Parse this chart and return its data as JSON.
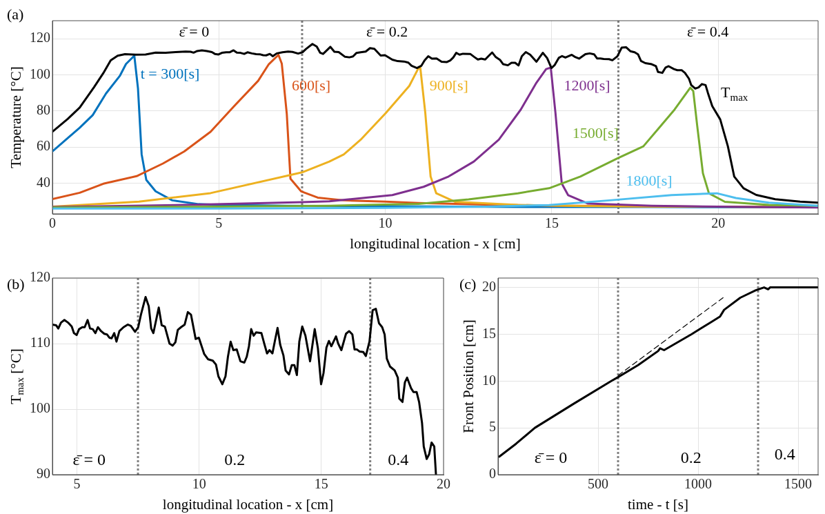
{
  "chart_data": [
    {
      "type": "line",
      "title": "(a)",
      "xlabel": "longitudinal location - x [cm]",
      "ylabel": "Temperature [°C]",
      "xlim": [
        0,
        23
      ],
      "ylim": [
        23,
        130
      ],
      "xticks": [
        0,
        5,
        10,
        15,
        20
      ],
      "yticks": [
        40,
        60,
        80,
        100,
        120
      ],
      "grid": true,
      "marker": "none",
      "ref_lines": [
        {
          "axis": "x",
          "value": 7.5,
          "color": "#808080",
          "line_style": "dotted"
        },
        {
          "axis": "x",
          "value": 17,
          "color": "#808080",
          "line_style": "dotted"
        }
      ],
      "annotations": [
        "ε̄ = 0",
        "ε̄ = 0.2",
        "ε̄ = 0.4"
      ],
      "series": [
        {
          "name": "t = 300[s]",
          "color": "#0072bd",
          "x": [
            0,
            0.46,
            0.82,
            1.21,
            1.61,
            2.03,
            2.21,
            2.46,
            2.57,
            2.68,
            2.82,
            3.1,
            3.6,
            4.39,
            5,
            7,
            9,
            12,
            15,
            18,
            21,
            23
          ],
          "values": [
            57.6,
            65,
            70.7,
            77.7,
            89.7,
            99.6,
            106,
            110.6,
            92.5,
            56,
            41.8,
            35.5,
            30.5,
            28.4,
            28,
            27.5,
            27.3,
            27,
            26.8,
            26.8,
            26.7,
            26.7
          ]
        },
        {
          "name": "600[s]",
          "color": "#d95319",
          "x": [
            0,
            0.82,
            1.53,
            2.53,
            3.32,
            3.96,
            4.75,
            5.46,
            6.18,
            6.5,
            6.79,
            6.89,
            7.04,
            7.15,
            7.47,
            7.97,
            8.76,
            10,
            11,
            13,
            15,
            17,
            20,
            23
          ],
          "values": [
            31.2,
            34.7,
            39.7,
            43.9,
            50.9,
            57.6,
            68.5,
            82.7,
            96.7,
            105.9,
            111.1,
            106.2,
            78.4,
            42.5,
            35.5,
            32,
            30.5,
            29.8,
            29,
            28.2,
            27.6,
            27.3,
            27,
            26.8
          ]
        },
        {
          "name": "900[s]",
          "color": "#edb120",
          "x": [
            0,
            2.6,
            4.75,
            7.5,
            8.32,
            8.75,
            9.26,
            10.02,
            10.72,
            10.98,
            11.05,
            11.2,
            11.36,
            11.53,
            12.09,
            13.98,
            16,
            19,
            23
          ],
          "values": [
            27,
            29.8,
            34.5,
            46,
            52,
            55.9,
            64.1,
            79,
            93.9,
            103.2,
            104,
            79,
            43.7,
            34.4,
            29.7,
            28,
            27.3,
            27,
            26.8
          ]
        },
        {
          "name": "1200[s]",
          "color": "#7e2f8e",
          "x": [
            0,
            4,
            7.5,
            8.32,
            10.21,
            11.15,
            11.9,
            12.66,
            13.41,
            14.07,
            14.54,
            14.83,
            14.97,
            15.11,
            15.3,
            15.49,
            16.09,
            18,
            20,
            23
          ],
          "values": [
            26.8,
            28,
            29.5,
            30,
            33.4,
            38,
            43.7,
            52,
            64.1,
            80.8,
            95.7,
            103.2,
            104,
            79,
            39.8,
            33.4,
            28.7,
            27.5,
            27,
            26.5
          ]
        },
        {
          "name": "1500[s]",
          "color": "#77ac30",
          "x": [
            0,
            5,
            8.32,
            11,
            12.5,
            13.98,
            14.92,
            15.86,
            16.99,
            17.75,
            18.22,
            18.69,
            19.16,
            19.25,
            19.37,
            19.54,
            19.72,
            20.2,
            21.52,
            23
          ],
          "values": [
            26.5,
            27,
            27.5,
            28.5,
            31,
            34.4,
            37.2,
            43.7,
            53.9,
            60.4,
            70.6,
            80.8,
            92.9,
            91,
            71.6,
            45.5,
            34.4,
            29.7,
            28,
            27.5
          ]
        },
        {
          "name": "1800[s]",
          "color": "#4dbeee",
          "x": [
            0,
            5,
            10,
            13,
            14.92,
            16.74,
            18.6,
            19.96,
            20.53,
            21.52,
            23
          ],
          "values": [
            26,
            26,
            26.3,
            27,
            27.9,
            30.5,
            33.4,
            34.4,
            31.8,
            29.2,
            27.5
          ]
        },
        {
          "name": "T$_{max}$",
          "color": "#000000",
          "x": [
            0,
            0.46,
            0.82,
            1.25,
            1.53,
            1.75,
            1.96,
            2.18,
            2.5,
            2.8,
            3.1,
            3.4,
            3.7,
            4,
            4.15,
            4.24,
            4.35,
            4.49,
            4.64,
            4.79,
            4.88,
            4.99,
            5.09,
            5.22,
            5.32,
            5.44,
            5.54,
            5.65,
            5.76,
            5.86,
            5.99,
            6.12,
            6.23,
            6.33,
            6.42,
            6.53,
            6.62,
            6.74,
            6.91,
            7.08,
            7.21,
            7.38,
            7.51,
            7.62,
            7.81,
            7.94,
            8.04,
            8.13,
            8.26,
            8.35,
            8.47,
            8.6,
            8.79,
            8.92,
            9.03,
            9.13,
            9.26,
            9.41,
            9.54,
            9.67,
            9.86,
            9.99,
            10.21,
            10.37,
            10.56,
            10.69,
            10.79,
            10.95,
            11.08,
            11.18,
            11.29,
            11.4,
            11.54,
            11.69,
            11.85,
            11.95,
            12.04,
            12.13,
            12.23,
            12.33,
            12.55,
            12.68,
            12.78,
            12.88,
            13,
            13.1,
            13.21,
            13.32,
            13.45,
            13.54,
            13.68,
            13.79,
            13.9,
            14,
            14.1,
            14.22,
            14.35,
            14.54,
            14.73,
            14.86,
            14.99,
            15.09,
            15.21,
            15.31,
            15.41,
            15.6,
            15.69,
            15.82,
            16.01,
            16.14,
            16.27,
            16.36,
            16.46,
            16.56,
            16.72,
            16.82,
            16.97,
            17.1,
            17.23,
            17.36,
            17.49,
            17.59,
            17.68,
            17.81,
            18,
            18.13,
            18.19,
            18.32,
            18.42,
            18.51,
            18.67,
            18.77,
            18.9,
            19,
            19.12,
            19.19,
            19.31,
            19.41,
            19.51,
            19.62,
            19.69,
            19.82,
            20.06,
            20.29,
            20.48,
            20.76,
            21.14,
            21.71,
            22.46,
            23
          ],
          "values": [
            68.5,
            75.6,
            81.9,
            93.2,
            101,
            108,
            110.6,
            111.5,
            111.2,
            111.3,
            112.3,
            112.2,
            112.6,
            112.9,
            112.8,
            112.3,
            113.2,
            113.6,
            113.2,
            112.6,
            111.6,
            111.3,
            112.2,
            112.5,
            112.5,
            113.6,
            112.3,
            112.2,
            111.6,
            112.5,
            111.9,
            111.5,
            111.4,
            110.9,
            110.8,
            111.6,
            110.3,
            111.9,
            112.5,
            112.9,
            112.7,
            111.8,
            112.5,
            114.4,
            117.1,
            115.7,
            112.3,
            111.6,
            113.9,
            115.5,
            112.8,
            112.6,
            110,
            109.7,
            110.2,
            112.1,
            112.5,
            112.9,
            114.8,
            114.4,
            110.7,
            110.9,
            108.4,
            107.6,
            107.4,
            106.8,
            105,
            103.8,
            105,
            108,
            110.3,
            109,
            109.1,
            107.3,
            107.1,
            108,
            109.6,
            112.2,
            111.2,
            111.7,
            111.6,
            109.8,
            108.5,
            109,
            108.5,
            110.4,
            112.4,
            109.8,
            108.2,
            105.9,
            105.3,
            106.7,
            106.7,
            105.2,
            110.3,
            112.6,
            111.2,
            107.3,
            112.2,
            109.3,
            103.8,
            105.5,
            109.4,
            110.4,
            109.6,
            111.1,
            110,
            109,
            111.5,
            111.9,
            111.4,
            109.1,
            109.1,
            108.8,
            108.7,
            108.1,
            110.3,
            115.1,
            115.3,
            113.1,
            112.5,
            111.4,
            107.7,
            106.5,
            105.9,
            104.8,
            101.6,
            101.1,
            104.1,
            104.8,
            103.2,
            102.6,
            102.6,
            101.1,
            97.9,
            94.3,
            92.4,
            93.1,
            94.9,
            94.3,
            90,
            82.7,
            75.3,
            60.4,
            43.7,
            37.2,
            33.5,
            31.1,
            29.8,
            29.2
          ]
        }
      ]
    },
    {
      "type": "line",
      "title": "(b)",
      "xlabel": "longitudinal location - x [cm]",
      "ylabel": "T$_{max}$ [°C]",
      "xlim": [
        4,
        20
      ],
      "ylim": [
        90,
        120
      ],
      "xticks": [
        5,
        10,
        15,
        20
      ],
      "yticks": [
        90,
        100,
        110,
        120
      ],
      "grid": true,
      "marker": "none",
      "ref_lines": [
        {
          "axis": "x",
          "value": 7.5,
          "color": "#808080",
          "line_style": "dotted"
        },
        {
          "axis": "x",
          "value": 17,
          "color": "#808080",
          "line_style": "dotted"
        }
      ],
      "annotations": [
        "ε̄ = 0",
        "0.2",
        "0.4"
      ],
      "series": [
        {
          "color": "#000000",
          "x": [
            4,
            4.15,
            4.24,
            4.35,
            4.49,
            4.64,
            4.79,
            4.88,
            4.99,
            5.09,
            5.22,
            5.32,
            5.44,
            5.54,
            5.65,
            5.76,
            5.86,
            5.99,
            6.12,
            6.23,
            6.33,
            6.42,
            6.53,
            6.62,
            6.74,
            6.91,
            7.08,
            7.21,
            7.38,
            7.51,
            7.62,
            7.81,
            7.94,
            8.04,
            8.13,
            8.26,
            8.35,
            8.47,
            8.6,
            8.79,
            8.92,
            9.03,
            9.13,
            9.26,
            9.41,
            9.54,
            9.67,
            9.86,
            9.99,
            10.21,
            10.37,
            10.56,
            10.69,
            10.79,
            10.95,
            11.08,
            11.18,
            11.29,
            11.4,
            11.54,
            11.69,
            11.85,
            11.95,
            12.04,
            12.13,
            12.23,
            12.33,
            12.55,
            12.68,
            12.78,
            12.88,
            13,
            13.1,
            13.21,
            13.32,
            13.45,
            13.54,
            13.68,
            13.79,
            13.9,
            14,
            14.1,
            14.22,
            14.35,
            14.54,
            14.73,
            14.86,
            14.99,
            15.09,
            15.21,
            15.31,
            15.41,
            15.6,
            15.69,
            15.82,
            16.01,
            16.14,
            16.27,
            16.36,
            16.46,
            16.56,
            16.72,
            16.82,
            16.97,
            17.1,
            17.23,
            17.36,
            17.49,
            17.59,
            17.68,
            17.81,
            18,
            18.13,
            18.19,
            18.32,
            18.42,
            18.51,
            18.67,
            18.77,
            18.9,
            19,
            19.12,
            19.19,
            19.31,
            19.41,
            19.51,
            19.62,
            19.69
          ],
          "values": [
            112.9,
            112.8,
            112.3,
            113.2,
            113.6,
            113.2,
            112.6,
            111.6,
            111.3,
            112.2,
            112.5,
            112.5,
            113.6,
            112.3,
            112.2,
            111.6,
            112.5,
            111.9,
            111.5,
            111.4,
            110.9,
            110.8,
            111.6,
            110.3,
            111.9,
            112.5,
            112.9,
            112.7,
            111.8,
            112.5,
            114.4,
            117.1,
            115.7,
            112.3,
            111.6,
            113.9,
            115.5,
            112.8,
            112.6,
            110,
            109.7,
            110.2,
            112.1,
            112.5,
            112.9,
            114.8,
            114.4,
            110.7,
            110.9,
            108.4,
            107.6,
            107.4,
            106.8,
            105,
            103.8,
            105,
            108,
            110.3,
            109,
            109.1,
            107.3,
            107.1,
            108,
            109.6,
            112.2,
            111.2,
            111.7,
            111.6,
            109.8,
            108.5,
            109,
            108.5,
            110.4,
            112.4,
            109.8,
            108.2,
            105.9,
            105.3,
            106.7,
            106.7,
            105.2,
            110.3,
            112.6,
            111.2,
            107.3,
            112.2,
            109.3,
            103.8,
            105.5,
            109.4,
            110.4,
            109.6,
            111.1,
            110,
            109,
            111.5,
            111.9,
            111.4,
            109.1,
            109.1,
            108.8,
            108.7,
            108.1,
            110.3,
            115.1,
            115.3,
            113.1,
            112.5,
            111.4,
            107.7,
            106.5,
            105.9,
            104.8,
            101.6,
            101.1,
            104.1,
            104.8,
            103.2,
            102.6,
            102.6,
            101.1,
            97.9,
            94.3,
            92.4,
            93.1,
            94.9,
            94.3,
            90
          ]
        }
      ]
    },
    {
      "type": "line",
      "title": "(c)",
      "xlabel": "time - t [s]",
      "ylabel": "Front Position [cm]",
      "xlim": [
        0,
        1600
      ],
      "ylim": [
        0,
        21
      ],
      "xticks": [
        500,
        1000,
        1500
      ],
      "yticks": [
        0,
        5,
        10,
        15,
        20
      ],
      "grid": true,
      "marker": "none",
      "ref_lines": [
        {
          "axis": "x",
          "value": 600,
          "color": "#808080",
          "line_style": "dotted"
        },
        {
          "axis": "x",
          "value": 1300,
          "color": "#808080",
          "line_style": "dotted"
        }
      ],
      "annotations": [
        "ε̄ = 0",
        "0.2",
        "0.4"
      ],
      "series": [
        {
          "color": "#000000",
          "x": [
            6.6,
            90,
            184,
            380,
            566,
            600,
            700,
            800,
            810,
            830,
            967,
            1066,
            1110,
            1130,
            1211,
            1289,
            1330,
            1350,
            1360,
            1600
          ],
          "values": [
            1.93,
            3.3,
            5,
            7.6,
            10,
            10.42,
            11.7,
            13.2,
            13.5,
            13.3,
            15,
            16.3,
            16.9,
            17.6,
            18.9,
            19.7,
            20,
            19.8,
            20,
            20
          ]
        },
        {
          "type": "line",
          "color": "#000000",
          "line_style": "dashed",
          "x": [
            600,
            1125
          ],
          "values": [
            10.6,
            18.9
          ]
        }
      ]
    }
  ]
}
